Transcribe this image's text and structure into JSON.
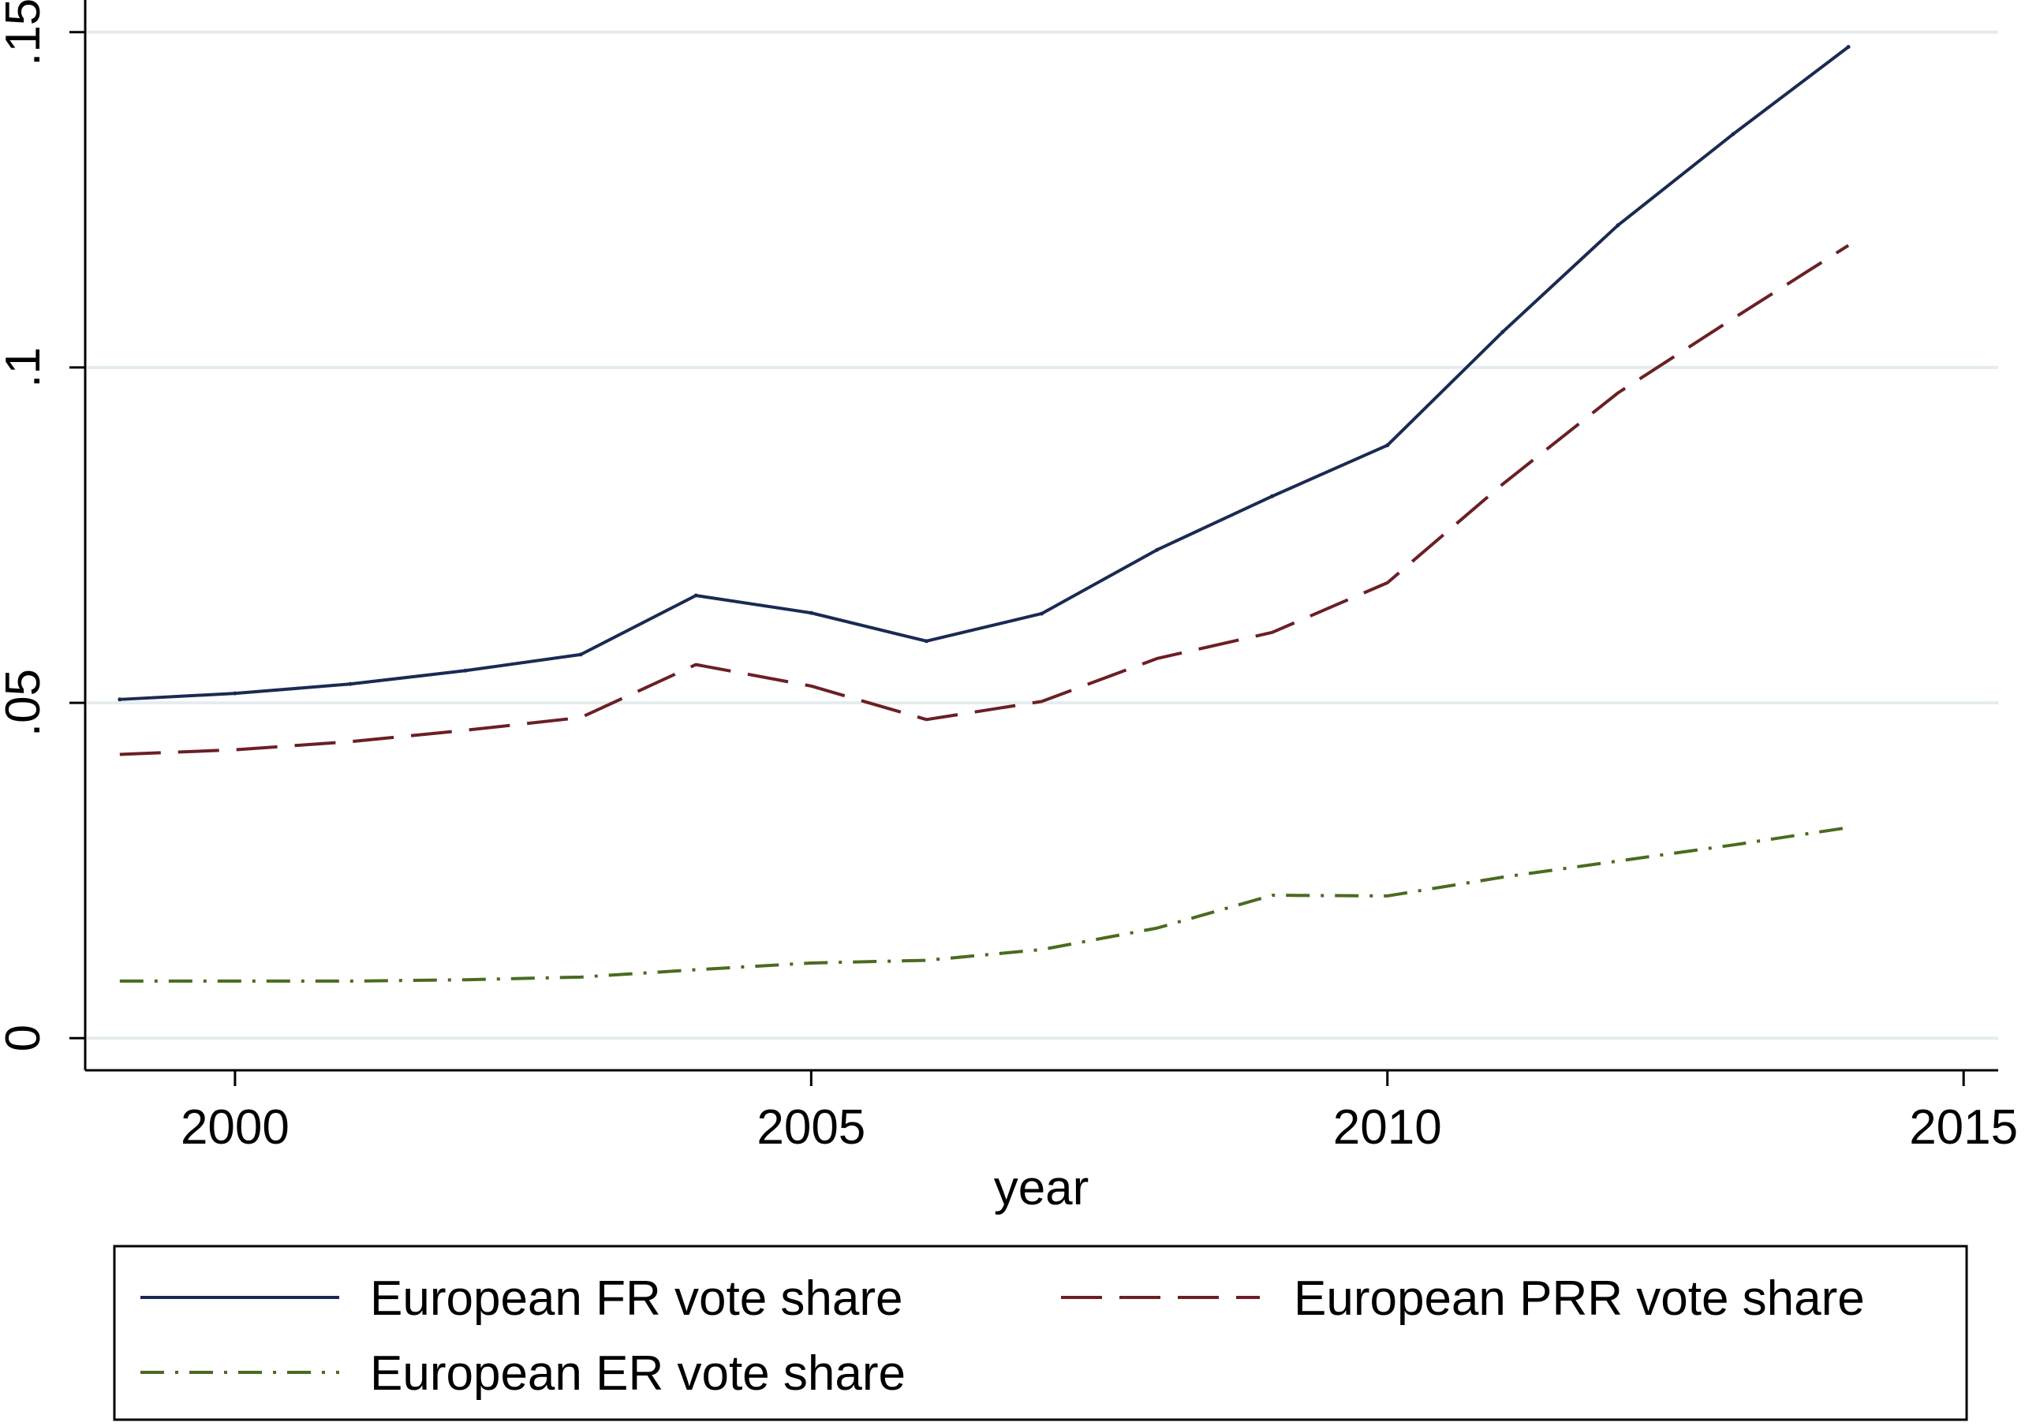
{
  "chart_data": {
    "type": "line",
    "title": "",
    "xlabel": "year",
    "ylabel": "",
    "xlim": [
      1998.7,
      2015.3
    ],
    "ylim": [
      -0.0048,
      0.1548
    ],
    "x_ticks": [
      2000,
      2005,
      2010,
      2015
    ],
    "x_tick_labels": [
      "2000",
      "2005",
      "2010",
      "2015"
    ],
    "y_ticks": [
      0,
      0.05,
      0.1,
      0.15
    ],
    "y_tick_labels": [
      "0",
      ".05",
      ".1",
      ".15"
    ],
    "grid": "horizontal",
    "legend_position": "bottom",
    "x": [
      1999,
      2000,
      2001,
      2002,
      2003,
      2004,
      2005,
      2006,
      2007,
      2008,
      2009,
      2010,
      2011,
      2012,
      2013,
      2014
    ],
    "series": [
      {
        "name": "European FR vote share",
        "color": "#1a2a52",
        "style": "solid",
        "values": [
          0.0505,
          0.0514,
          0.0528,
          0.0548,
          0.0572,
          0.066,
          0.0634,
          0.0592,
          0.0633,
          0.0728,
          0.0808,
          0.0884,
          0.1053,
          0.1212,
          0.1348,
          0.1478
        ]
      },
      {
        "name": "European PRR vote share",
        "color": "#6b1f24",
        "style": "dashed",
        "values": [
          0.0423,
          0.043,
          0.0442,
          0.0459,
          0.0478,
          0.0557,
          0.0525,
          0.0475,
          0.0502,
          0.0566,
          0.0605,
          0.0679,
          0.0826,
          0.0962,
          0.1073,
          0.1182
        ]
      },
      {
        "name": "European ER vote share",
        "color": "#4a6b1f",
        "style": "dashdot",
        "values": [
          0.0085,
          0.0085,
          0.0085,
          0.0087,
          0.0091,
          0.0102,
          0.0112,
          0.0116,
          0.0132,
          0.0164,
          0.0213,
          0.0212,
          0.024,
          0.0264,
          0.0288,
          0.0314
        ]
      }
    ]
  }
}
